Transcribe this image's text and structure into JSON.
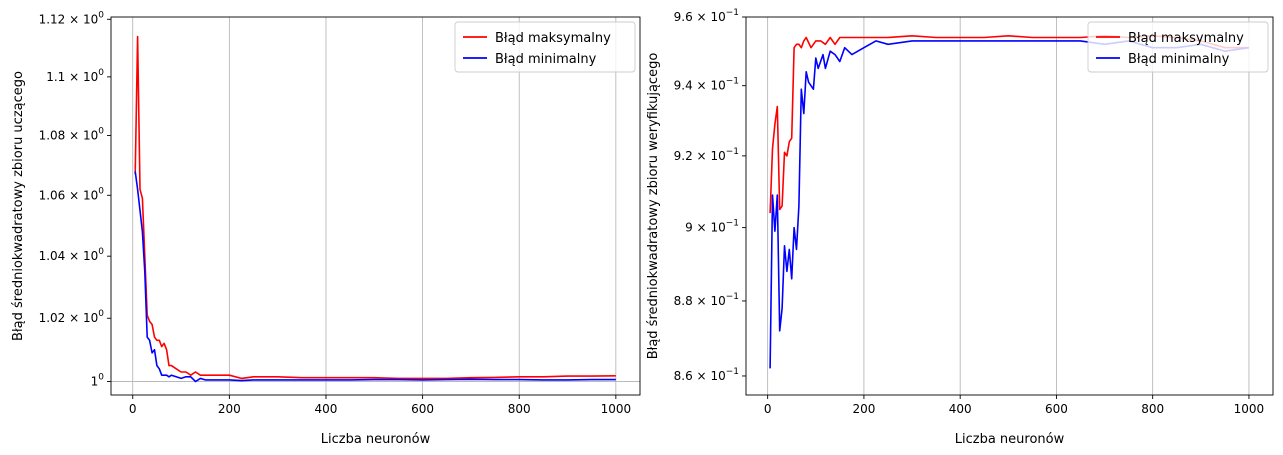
{
  "colors": {
    "max_series": "#ff0000",
    "min_series": "#0000ff",
    "grid": "#b0b0b0",
    "frame": "#000000"
  },
  "chart_data": [
    {
      "type": "line",
      "title": "",
      "xlabel": "Liczba neuronów",
      "ylabel": "Błąd średniokwadratowy zbioru uczącego",
      "xlim": [
        -45,
        1050
      ],
      "ylim": [
        0.9958,
        1.1208
      ],
      "xscale": "linear",
      "yscale": "log",
      "xticks": [
        0,
        200,
        400,
        600,
        800,
        1000
      ],
      "xtick_labels": [
        "0",
        "200",
        "400",
        "600",
        "800",
        "1000"
      ],
      "yticks": [
        1.0,
        1.02,
        1.04,
        1.06,
        1.08,
        1.1,
        1.12
      ],
      "ytick_labels": [
        {
          "base": "1",
          "sup": "0",
          "mant": ""
        },
        {
          "base": "10",
          "sup": "0",
          "mant": "1.02 × "
        },
        {
          "base": "10",
          "sup": "0",
          "mant": "1.04 × "
        },
        {
          "base": "10",
          "sup": "0",
          "mant": "1.06 × "
        },
        {
          "base": "10",
          "sup": "0",
          "mant": "1.08 × "
        },
        {
          "base": "10",
          "sup": "0",
          "mant": "1.1 × "
        },
        {
          "base": "10",
          "sup": "0",
          "mant": "1.12 × "
        }
      ],
      "grid": "x-major",
      "legend_position": "top-right",
      "series": [
        {
          "name": "Błąd maksymalny",
          "color": "#ff0000",
          "x": [
            5,
            10,
            15,
            20,
            25,
            30,
            35,
            40,
            45,
            50,
            55,
            60,
            65,
            70,
            75,
            80,
            90,
            100,
            110,
            120,
            130,
            140,
            150,
            175,
            200,
            225,
            250,
            300,
            350,
            400,
            450,
            500,
            550,
            600,
            650,
            700,
            750,
            800,
            850,
            900,
            950,
            1000
          ],
          "y": [
            1.067,
            1.114,
            1.062,
            1.059,
            1.04,
            1.021,
            1.019,
            1.018,
            1.014,
            1.013,
            1.013,
            1.011,
            1.012,
            1.01,
            1.005,
            1.005,
            1.004,
            1.003,
            1.003,
            1.002,
            1.003,
            1.002,
            1.002,
            1.002,
            1.002,
            1.001,
            1.0015,
            1.0015,
            1.0012,
            1.0012,
            1.0012,
            1.0012,
            1.001,
            1.001,
            1.001,
            1.0012,
            1.0013,
            1.0015,
            1.0015,
            1.0017,
            1.0017,
            1.0018
          ]
        },
        {
          "name": "Błąd minimalny",
          "color": "#0000ff",
          "x": [
            5,
            10,
            15,
            20,
            25,
            30,
            35,
            40,
            45,
            50,
            55,
            60,
            65,
            70,
            75,
            80,
            90,
            100,
            110,
            120,
            130,
            140,
            150,
            175,
            200,
            225,
            250,
            300,
            350,
            400,
            450,
            500,
            550,
            600,
            650,
            700,
            750,
            800,
            850,
            900,
            950,
            1000
          ],
          "y": [
            1.068,
            1.062,
            1.055,
            1.048,
            1.035,
            1.014,
            1.013,
            1.009,
            1.01,
            1.005,
            1.004,
            1.002,
            1.002,
            1.002,
            1.0015,
            1.002,
            1.0015,
            1.001,
            1.0015,
            1.0015,
            1.0,
            1.001,
            1.0005,
            1.0005,
            1.0005,
            1.0003,
            1.0005,
            1.0005,
            1.0005,
            1.0005,
            1.0005,
            1.0006,
            1.0006,
            1.0005,
            1.0006,
            1.0007,
            1.0006,
            1.0006,
            1.0005,
            1.0005,
            1.0006,
            1.0006
          ]
        }
      ]
    },
    {
      "type": "line",
      "title": "",
      "xlabel": "Liczba neuronów",
      "ylabel": "Błąd średniokwadratowy zbioru weryfikującego",
      "xlim": [
        -45,
        1050
      ],
      "ylim": [
        0.855,
        0.96
      ],
      "xscale": "linear",
      "yscale": "log",
      "xticks": [
        0,
        200,
        400,
        600,
        800,
        1000
      ],
      "xtick_labels": [
        "0",
        "200",
        "400",
        "600",
        "800",
        "1000"
      ],
      "yticks": [
        0.86,
        0.88,
        0.9,
        0.92,
        0.94,
        0.96
      ],
      "ytick_labels": [
        {
          "base": "10",
          "sup": "−1",
          "mant": "8.6 × "
        },
        {
          "base": "10",
          "sup": "−1",
          "mant": "8.8 × "
        },
        {
          "base": "10",
          "sup": "−1",
          "mant": "9 × "
        },
        {
          "base": "10",
          "sup": "−1",
          "mant": "9.2 × "
        },
        {
          "base": "10",
          "sup": "−1",
          "mant": "9.4 × "
        },
        {
          "base": "10",
          "sup": "−1",
          "mant": "9.6 × "
        }
      ],
      "grid": "x-major",
      "legend_position": "top-right",
      "series": [
        {
          "name": "Błąd maksymalny",
          "color": "#ff0000",
          "x": [
            5,
            10,
            15,
            20,
            25,
            30,
            35,
            40,
            45,
            50,
            55,
            60,
            65,
            70,
            75,
            80,
            90,
            100,
            110,
            120,
            130,
            140,
            150,
            175,
            200,
            250,
            300,
            350,
            400,
            450,
            500,
            550,
            600,
            650,
            700,
            750,
            800,
            850,
            900,
            950,
            1000
          ],
          "y": [
            0.904,
            0.922,
            0.929,
            0.934,
            0.905,
            0.906,
            0.921,
            0.92,
            0.924,
            0.925,
            0.951,
            0.952,
            0.952,
            0.951,
            0.953,
            0.954,
            0.951,
            0.953,
            0.953,
            0.952,
            0.954,
            0.952,
            0.954,
            0.954,
            0.954,
            0.954,
            0.9545,
            0.954,
            0.954,
            0.954,
            0.9545,
            0.954,
            0.954,
            0.954,
            0.9545,
            0.954,
            0.9545,
            0.954,
            0.953,
            0.951,
            0.951
          ]
        },
        {
          "name": "Błąd minimalny",
          "color": "#0000ff",
          "x": [
            5,
            10,
            15,
            20,
            25,
            30,
            35,
            40,
            45,
            50,
            55,
            60,
            65,
            70,
            75,
            80,
            85,
            90,
            95,
            100,
            105,
            110,
            115,
            120,
            130,
            140,
            150,
            160,
            175,
            200,
            225,
            250,
            300,
            350,
            400,
            450,
            500,
            550,
            600,
            650,
            700,
            750,
            800,
            850,
            900,
            950,
            1000
          ],
          "y": [
            0.862,
            0.909,
            0.899,
            0.909,
            0.872,
            0.878,
            0.895,
            0.888,
            0.894,
            0.886,
            0.9,
            0.894,
            0.906,
            0.939,
            0.932,
            0.944,
            0.941,
            0.94,
            0.939,
            0.948,
            0.945,
            0.947,
            0.949,
            0.945,
            0.95,
            0.949,
            0.947,
            0.951,
            0.949,
            0.951,
            0.953,
            0.952,
            0.953,
            0.953,
            0.953,
            0.953,
            0.953,
            0.953,
            0.953,
            0.953,
            0.952,
            0.953,
            0.951,
            0.951,
            0.952,
            0.95,
            0.951
          ]
        }
      ]
    }
  ]
}
